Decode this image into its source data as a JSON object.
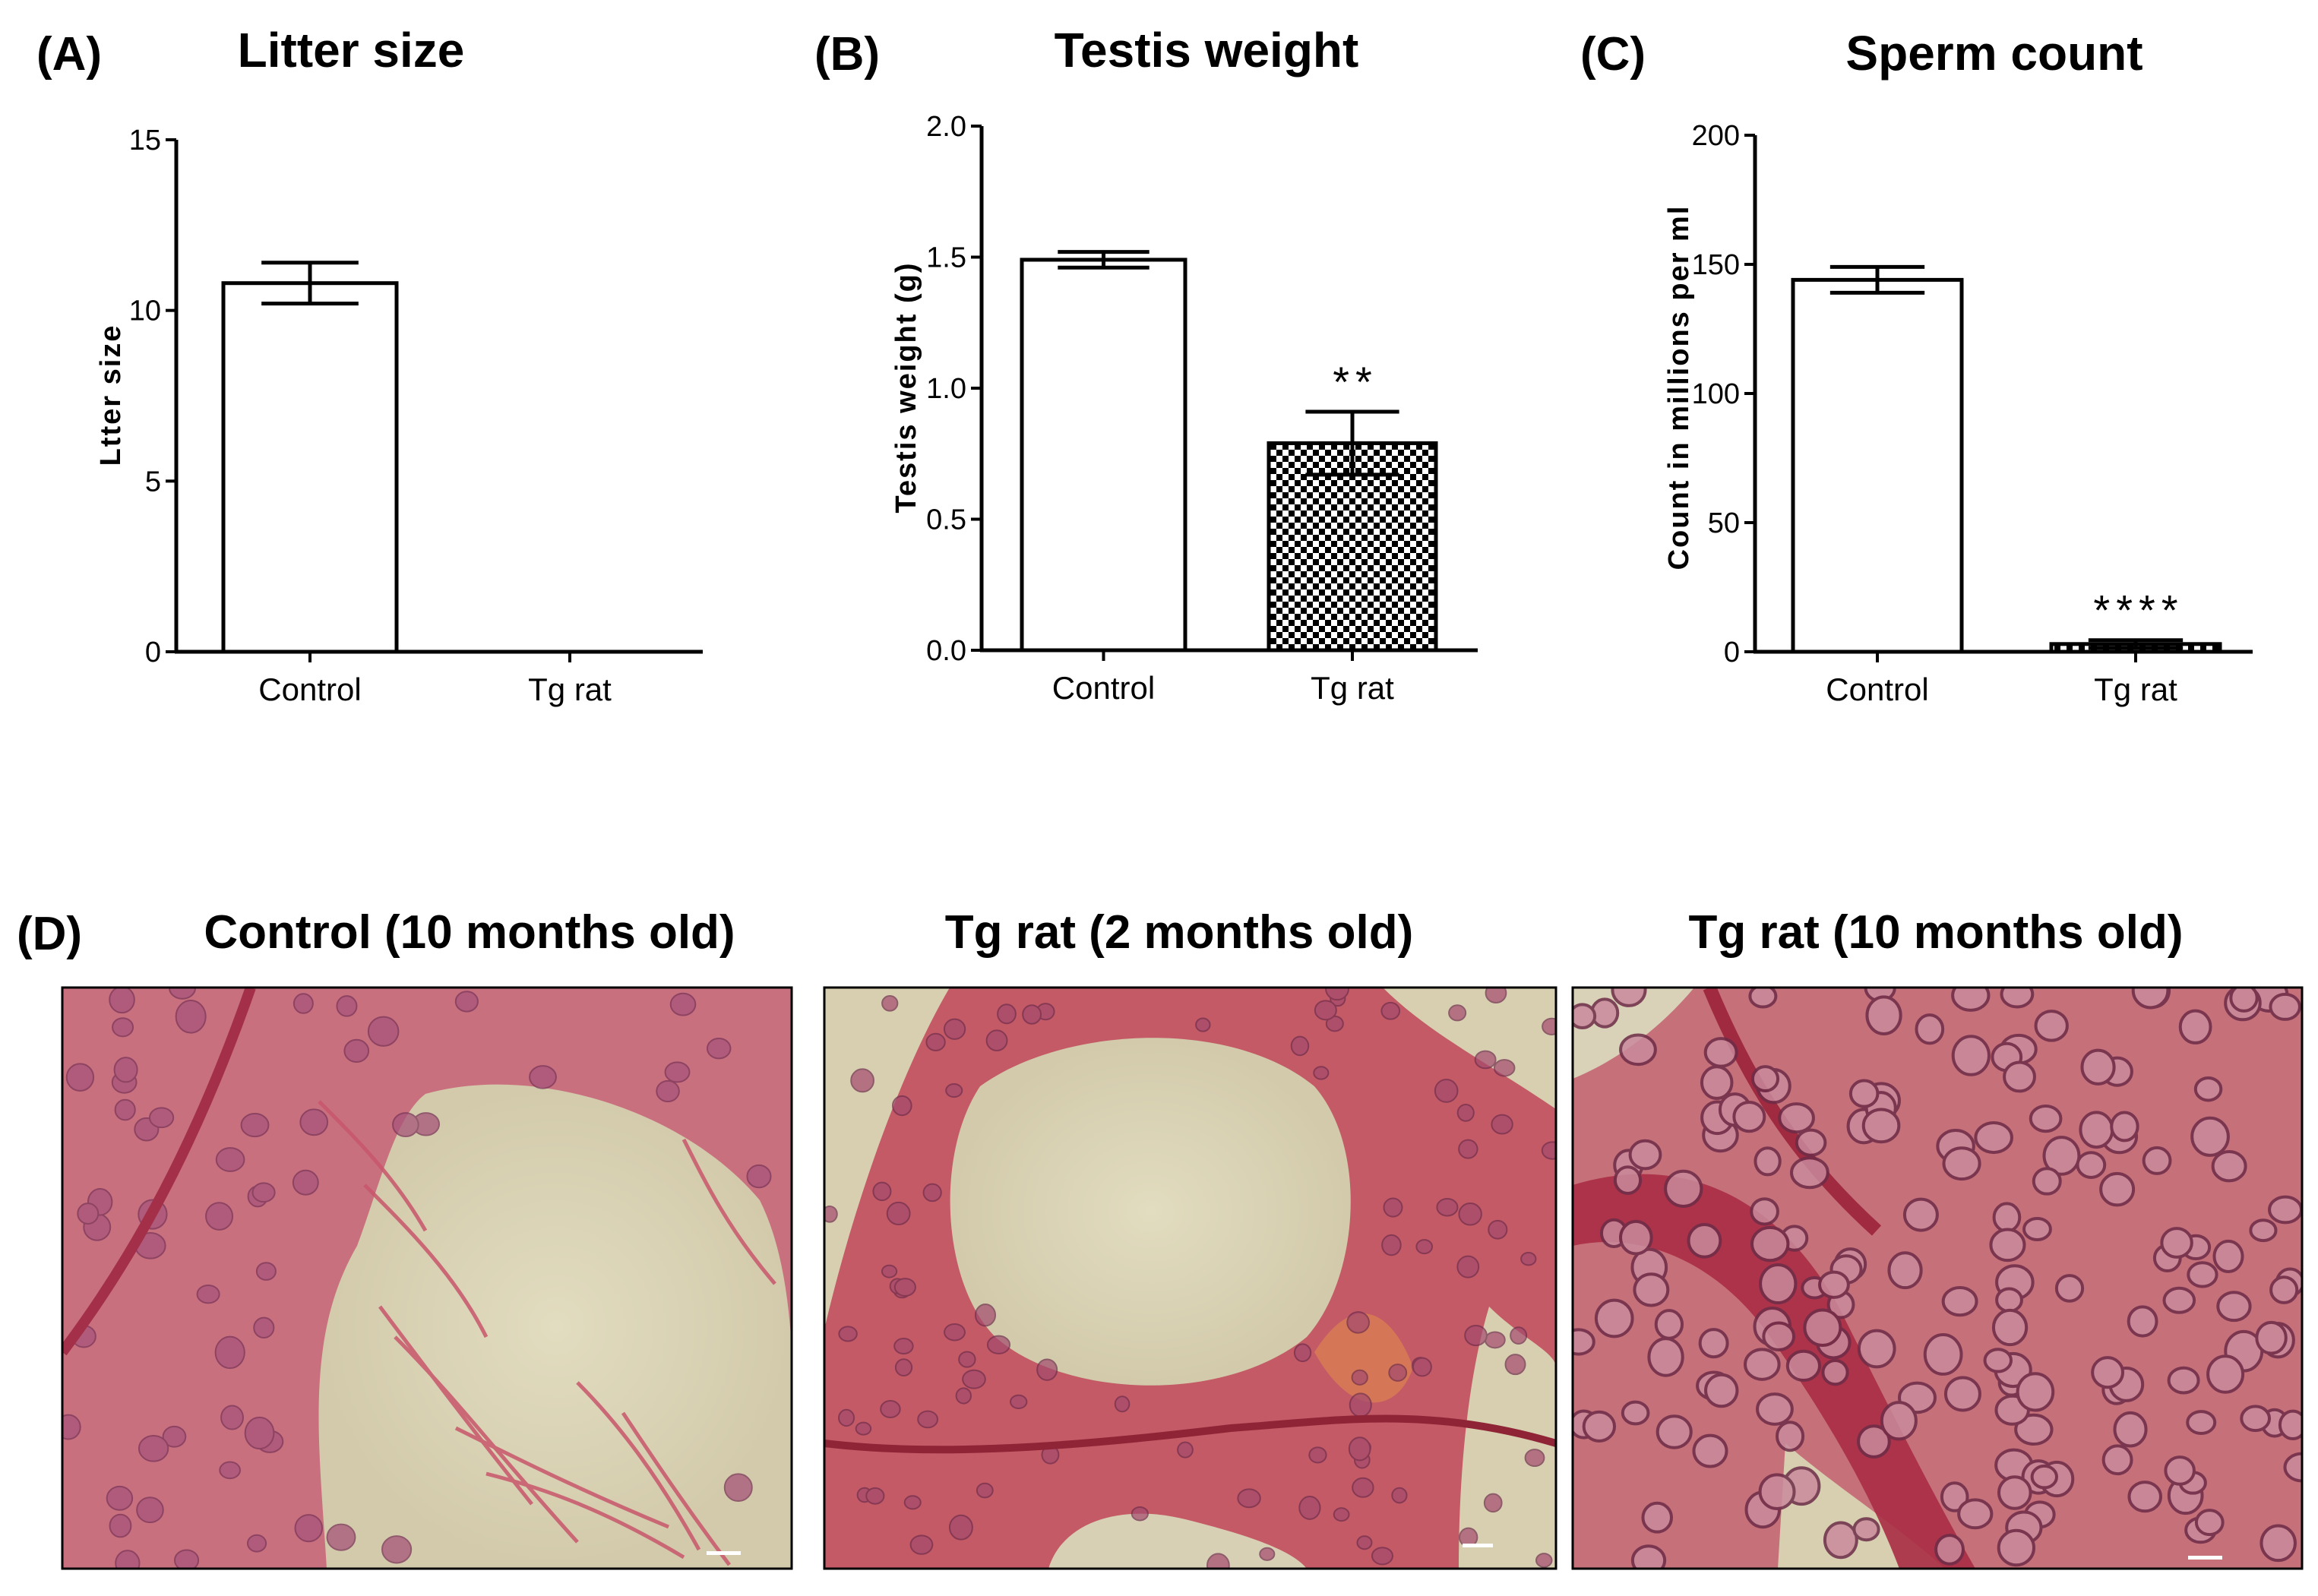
{
  "chart_data": [
    {
      "type": "bar",
      "panel": "(A)",
      "title": "Litter size",
      "ylabel": "Ltter size",
      "xlabel": "",
      "categories": [
        "Control",
        "Tg rat"
      ],
      "values": [
        10.8,
        0
      ],
      "errors": [
        0.6,
        0
      ],
      "ylim": [
        0,
        15
      ],
      "yticks": [
        0,
        5,
        10,
        15
      ],
      "significance": [
        "",
        ""
      ],
      "patterns": [
        "plain",
        "plain"
      ],
      "grid": false
    },
    {
      "type": "bar",
      "panel": "(B)",
      "title": "Testis weight",
      "ylabel": "Testis weight (g)",
      "xlabel": "",
      "categories": [
        "Control",
        "Tg rat"
      ],
      "values": [
        1.49,
        0.79
      ],
      "errors": [
        0.03,
        0.12
      ],
      "ylim": [
        0,
        2.0
      ],
      "yticks": [
        "0.0",
        "0.5",
        "1.0",
        "1.5",
        "2.0"
      ],
      "significance": [
        "",
        "**"
      ],
      "patterns": [
        "plain",
        "checker"
      ],
      "grid": false
    },
    {
      "type": "bar",
      "panel": "(C)",
      "title": "Sperm count",
      "ylabel": "Count in millions per ml",
      "xlabel": "",
      "categories": [
        "Control",
        "Tg rat"
      ],
      "values": [
        144,
        3
      ],
      "errors": [
        5,
        1.5
      ],
      "ylim": [
        0,
        200
      ],
      "yticks": [
        0,
        50,
        100,
        150,
        200
      ],
      "significance": [
        "",
        "****"
      ],
      "patterns": [
        "plain",
        "checker"
      ],
      "grid": false
    }
  ],
  "histology": {
    "panel": "(D)",
    "images": [
      {
        "title": "Control (10 months old)"
      },
      {
        "title": "Tg rat (2 months old)"
      },
      {
        "title": "Tg rat (10 months old)"
      }
    ]
  },
  "colors": {
    "stain_pink": "#cf7b8c",
    "stain_dark": "#b0324a",
    "lumen": "#d7d0b2",
    "nucleus": "#7a4464"
  }
}
